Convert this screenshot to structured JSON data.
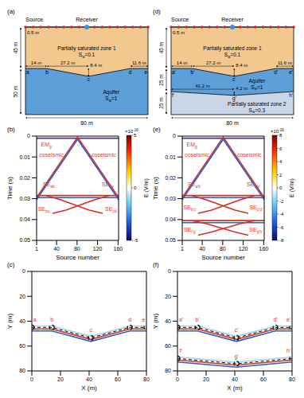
{
  "diagrams": [
    {
      "label": "(a)",
      "source": "Source",
      "receiver": "Receiver",
      "spacing": "0.5 m",
      "width": {
        "value": 80,
        "label": "80 m"
      },
      "layers": [
        {
          "name": "Partially saturated zone 1",
          "saturation": {
            "text": "S",
            "sub": "w",
            "rest": "=0.1"
          },
          "thickness": {
            "value": 45,
            "label": "45 m"
          },
          "color": "#f3c88f"
        },
        {
          "name": "Aquifer",
          "saturation": {
            "text": "S",
            "sub": "w",
            "rest": "=1"
          },
          "thickness": {
            "value": 50,
            "label": "50 m"
          },
          "color": "#5d9fd8"
        }
      ],
      "interfaces": [
        {
          "points": [
            {
              "name": "a",
              "x": 0,
              "depth": 45
            },
            {
              "name": "b",
              "x": 14,
              "depth": 45
            },
            {
              "name": "c",
              "x": 41.2,
              "depth": 53.4
            },
            {
              "name": "d",
              "x": 68.4,
              "depth": 45
            },
            {
              "name": "e",
              "x": 80,
              "depth": 45
            }
          ],
          "dims": [
            {
              "label": "14 m",
              "axis": "x",
              "from": "a",
              "to": "b"
            },
            {
              "label": "27.2 m",
              "axis": "x",
              "from": "b",
              "to": "c"
            },
            {
              "label": "11.6 m",
              "axis": "x",
              "from": "d",
              "to": "e"
            },
            {
              "label": "8.4 m",
              "axis": "y",
              "from": "b",
              "to": "c"
            }
          ]
        }
      ]
    },
    {
      "label": "(d)",
      "source": "Source",
      "receiver": "Receiver",
      "spacing": "0.5 m",
      "width": {
        "value": 80,
        "label": "80 m"
      },
      "layers": [
        {
          "name": "Partially saturated zone 1",
          "saturation": {
            "text": "S",
            "sub": "w",
            "rest": "=0.1"
          },
          "thickness": {
            "value": 45,
            "label": "45 m"
          },
          "color": "#f3c88f"
        },
        {
          "name": "Aquifer",
          "saturation": {
            "text": "S",
            "sub": "w",
            "rest": "=1"
          },
          "thickness": {
            "value": 25,
            "label": "25 m"
          },
          "color": "#5d9fd8"
        },
        {
          "name": "Partially saturated zone 2",
          "saturation": {
            "text": "S",
            "sub": "w",
            "rest": "=0.3"
          },
          "thickness": {
            "value": 25,
            "label": "25 m"
          },
          "color": "#c9d6e8"
        }
      ],
      "interfaces": [
        {
          "points": [
            {
              "name": "a'",
              "x": 0,
              "depth": 45
            },
            {
              "name": "b'",
              "x": 14,
              "depth": 45
            },
            {
              "name": "c'",
              "x": 41.2,
              "depth": 53.4
            },
            {
              "name": "d'",
              "x": 68.4,
              "depth": 45
            },
            {
              "name": "e'",
              "x": 80,
              "depth": 45
            }
          ],
          "dims": [
            {
              "label": "14 m",
              "axis": "x",
              "from": "a'",
              "to": "b'"
            },
            {
              "label": "27.2 m",
              "axis": "x",
              "from": "b'",
              "to": "c'"
            },
            {
              "label": "11.6 m",
              "axis": "x",
              "from": "d'",
              "to": "e'"
            },
            {
              "label": "8.4 m",
              "axis": "y",
              "from": "b'",
              "to": "c'"
            }
          ]
        },
        {
          "points": [
            {
              "name": "f'",
              "x": 0,
              "depth": 70
            },
            {
              "name": "g'",
              "x": 41.2,
              "depth": 74.2
            },
            {
              "name": "h'",
              "x": 80,
              "depth": 70
            }
          ],
          "dims": [
            {
              "label": "41.2 m",
              "axis": "x",
              "from": "f'",
              "to": "g'"
            },
            {
              "label": "4.2 m",
              "axis": "y",
              "from": "f'",
              "to": "g'"
            }
          ]
        }
      ]
    }
  ],
  "chart_data": [
    {
      "label": "(b)",
      "type": "line",
      "xlabel": "Source number",
      "ylabel": "Time (s)",
      "xlim": [
        1,
        161
      ],
      "xticks": [
        1,
        40,
        80,
        120,
        160
      ],
      "ylim": [
        0,
        0.05
      ],
      "yticks": [
        0,
        0.01,
        0.02,
        0.03,
        0.04,
        0.05
      ],
      "grid": false,
      "colorbar": {
        "label": "E (V/m)",
        "multiplier": {
          "text": "×10",
          "sup": "-16"
        },
        "range": [
          -5,
          5
        ],
        "ticks": [
          -5,
          0,
          5
        ]
      },
      "series": [
        {
          "color": "#5b2a86",
          "x": [
            1,
            161
          ],
          "values": [
            0.001,
            0.001
          ]
        },
        {
          "color": "#d7301f",
          "x": [
            1,
            81,
            161
          ],
          "values": [
            0.0295,
            0.0005,
            0.0295
          ]
        },
        {
          "color": "#2c5fc4",
          "x": [
            1,
            81,
            161
          ],
          "values": [
            0.0305,
            0.0015,
            0.0305
          ]
        },
        {
          "color": "#d7301f",
          "x": [
            1,
            161
          ],
          "values": [
            0.0285,
            0.0285
          ]
        },
        {
          "color": "#2c5fc4",
          "x": [
            1,
            161
          ],
          "values": [
            0.0295,
            0.0295
          ]
        },
        {
          "color": "#d7301f",
          "x": [
            20,
            48,
            76,
            104,
            130
          ],
          "values": [
            0.0285,
            0.0305,
            0.033,
            0.0355,
            0.037
          ]
        },
        {
          "color": "#d7301f",
          "x": [
            32,
            58,
            86,
            114,
            142
          ],
          "values": [
            0.037,
            0.0355,
            0.033,
            0.0305,
            0.0285
          ]
        }
      ],
      "annotations": [
        {
          "text": "EM",
          "sub": "g",
          "x": 20,
          "y": 0.005,
          "color": "#e8312a"
        },
        {
          "text": "coseismic",
          "x": 30,
          "y": 0.01,
          "color": "#e8312a"
        },
        {
          "text": "coseismic",
          "x": 132,
          "y": 0.01,
          "color": "#e8312a"
        },
        {
          "text": "SE",
          "sub": "ab",
          "x": 25,
          "y": 0.024,
          "color": "#e8312a"
        },
        {
          "text": "SE",
          "sub": "de",
          "x": 140,
          "y": 0.024,
          "color": "#e8312a"
        },
        {
          "text": "SE",
          "sub": "bc",
          "x": 15,
          "y": 0.036,
          "color": "#e8312a"
        },
        {
          "text": "SE",
          "sub": "cd",
          "x": 146,
          "y": 0.036,
          "color": "#e8312a"
        }
      ]
    },
    {
      "label": "(c)",
      "type": "line",
      "xlabel": "X (m)",
      "ylabel": "Y (m)",
      "xlim": [
        0,
        80
      ],
      "xticks": [
        0,
        20,
        40,
        60,
        80
      ],
      "ylim": [
        0,
        80
      ],
      "yticks": [
        0,
        20,
        40,
        60,
        80
      ],
      "grid": false,
      "series": [
        {
          "color": "#9ad8ea",
          "x": [
            0,
            14,
            41.2,
            68.4,
            80
          ],
          "values": [
            43.8,
            43.8,
            52.2,
            43.8,
            43.8
          ]
        },
        {
          "color": "#d7301f",
          "x": [
            0,
            14,
            41.2,
            68.4,
            80
          ],
          "values": [
            46.2,
            46.2,
            54.6,
            46.2,
            46.2
          ]
        },
        {
          "color": "#2c5fc4",
          "x": [
            0,
            14,
            41.2,
            68.4,
            80
          ],
          "values": [
            47.8,
            47.8,
            56.2,
            47.8,
            47.8
          ]
        },
        {
          "color": "#000000",
          "line_style": "dashed",
          "marker": "circle",
          "x": [
            0,
            14,
            41.2,
            68.4,
            80
          ],
          "values": [
            45,
            45,
            53.4,
            45,
            45
          ]
        }
      ],
      "annotations": [
        {
          "text": "a",
          "x": 2,
          "y": 40,
          "color": "#e8312a"
        },
        {
          "text": "b",
          "x": 14,
          "y": 40,
          "color": "#e8312a"
        },
        {
          "text": "c",
          "x": 41.2,
          "y": 48.5,
          "color": "#e8312a"
        },
        {
          "text": "d",
          "x": 68.4,
          "y": 40,
          "color": "#e8312a"
        },
        {
          "text": "e",
          "x": 78,
          "y": 40,
          "color": "#e8312a"
        }
      ]
    },
    {
      "label": "(e)",
      "type": "line",
      "xlabel": "Source number",
      "ylabel": "Time (s)",
      "xlim": [
        1,
        161
      ],
      "xticks": [
        1,
        40,
        80,
        120,
        160
      ],
      "ylim": [
        0,
        0.05
      ],
      "yticks": [
        0,
        0.01,
        0.02,
        0.03,
        0.04,
        0.05
      ],
      "grid": false,
      "colorbar": {
        "label": "E (V/m)",
        "multiplier": {
          "text": "×10",
          "sup": "-16"
        },
        "range": [
          -8,
          8
        ],
        "ticks": [
          -8,
          -6,
          -4,
          -2,
          0,
          2,
          4,
          6,
          8
        ]
      },
      "series": [
        {
          "color": "#5b2a86",
          "x": [
            1,
            161
          ],
          "values": [
            0.001,
            0.001
          ]
        },
        {
          "color": "#d7301f",
          "x": [
            1,
            81,
            161
          ],
          "values": [
            0.0295,
            0.0005,
            0.0295
          ]
        },
        {
          "color": "#2c5fc4",
          "x": [
            1,
            81,
            161
          ],
          "values": [
            0.0305,
            0.0015,
            0.0305
          ]
        },
        {
          "color": "#d7301f",
          "x": [
            1,
            161
          ],
          "values": [
            0.0285,
            0.0285
          ]
        },
        {
          "color": "#2c5fc4",
          "x": [
            1,
            161
          ],
          "values": [
            0.0295,
            0.0295
          ]
        },
        {
          "color": "#d7301f",
          "x": [
            20,
            48,
            76,
            104,
            130
          ],
          "values": [
            0.0285,
            0.0305,
            0.033,
            0.0355,
            0.037
          ]
        },
        {
          "color": "#d7301f",
          "x": [
            32,
            58,
            86,
            114,
            142
          ],
          "values": [
            0.037,
            0.0355,
            0.033,
            0.0305,
            0.0285
          ]
        },
        {
          "color": "#d7301f",
          "x": [
            1,
            161
          ],
          "values": [
            0.0405,
            0.0405
          ]
        },
        {
          "color": "#2c5fc4",
          "x": [
            1,
            161
          ],
          "values": [
            0.0415,
            0.0415
          ]
        },
        {
          "color": "#d7301f",
          "x": [
            20,
            48,
            76,
            104,
            130
          ],
          "values": [
            0.0405,
            0.042,
            0.044,
            0.046,
            0.0475
          ]
        },
        {
          "color": "#d7301f",
          "x": [
            32,
            58,
            86,
            114,
            142
          ],
          "values": [
            0.0475,
            0.046,
            0.044,
            0.042,
            0.0405
          ]
        }
      ],
      "annotations": [
        {
          "text": "EM",
          "sub": "g",
          "x": 20,
          "y": 0.005,
          "color": "#e8312a"
        },
        {
          "text": "coseismic",
          "x": 30,
          "y": 0.01,
          "color": "#e8312a"
        },
        {
          "text": "coseismic",
          "x": 132,
          "y": 0.01,
          "color": "#e8312a"
        },
        {
          "text": "SE",
          "sub": "a'b'",
          "x": 25,
          "y": 0.024,
          "color": "#e8312a"
        },
        {
          "text": "SE",
          "sub": "d'e'",
          "x": 140,
          "y": 0.024,
          "color": "#e8312a"
        },
        {
          "text": "SE",
          "sub": "b'c'",
          "x": 16,
          "y": 0.035,
          "color": "#e8312a"
        },
        {
          "text": "SE",
          "sub": "c'd'",
          "x": 145,
          "y": 0.035,
          "color": "#e8312a"
        },
        {
          "text": "SE",
          "sub": "f'g'",
          "x": 16,
          "y": 0.0458,
          "color": "#e8312a"
        },
        {
          "text": "SE",
          "sub": "g'h'",
          "x": 145,
          "y": 0.0458,
          "color": "#e8312a"
        }
      ]
    },
    {
      "label": "(f)",
      "type": "line",
      "xlabel": "X (m)",
      "ylabel": "Y (m)",
      "xlim": [
        0,
        80
      ],
      "xticks": [
        0,
        20,
        40,
        60,
        80
      ],
      "ylim": [
        0,
        80
      ],
      "yticks": [
        0,
        20,
        40,
        60,
        80
      ],
      "grid": false,
      "series": [
        {
          "color": "#9ad8ea",
          "x": [
            0,
            14,
            41.2,
            68.4,
            80
          ],
          "values": [
            43.8,
            43.8,
            52.2,
            43.8,
            43.8
          ]
        },
        {
          "color": "#d7301f",
          "x": [
            0,
            14,
            41.2,
            68.4,
            80
          ],
          "values": [
            46.2,
            46.2,
            54.6,
            46.2,
            46.2
          ]
        },
        {
          "color": "#2c5fc4",
          "x": [
            0,
            14,
            41.2,
            68.4,
            80
          ],
          "values": [
            47.8,
            47.8,
            56.2,
            47.8,
            47.8
          ]
        },
        {
          "color": "#000000",
          "line_style": "dashed",
          "marker": "circle",
          "x": [
            0,
            14,
            41.2,
            68.4,
            80
          ],
          "values": [
            45,
            45,
            53.4,
            45,
            45
          ]
        },
        {
          "color": "#9ad8ea",
          "x": [
            0,
            41.2,
            80
          ],
          "values": [
            68.8,
            73,
            68.8
          ]
        },
        {
          "color": "#d7301f",
          "x": [
            0,
            41.2,
            80
          ],
          "values": [
            71.2,
            75.4,
            71.2
          ]
        },
        {
          "color": "#2c5fc4",
          "x": [
            0,
            41.2,
            80
          ],
          "values": [
            72.8,
            77,
            72.8
          ]
        },
        {
          "color": "#000000",
          "line_style": "dashed",
          "marker": "circle",
          "x": [
            0,
            41.2,
            80
          ],
          "values": [
            70,
            74.2,
            70
          ]
        }
      ],
      "annotations": [
        {
          "text": "a'",
          "x": 2.5,
          "y": 40,
          "color": "#e8312a"
        },
        {
          "text": "b'",
          "x": 14,
          "y": 40,
          "color": "#e8312a"
        },
        {
          "text": "c'",
          "x": 41.2,
          "y": 48.5,
          "color": "#e8312a"
        },
        {
          "text": "d'",
          "x": 68.4,
          "y": 40,
          "color": "#e8312a"
        },
        {
          "text": "e'",
          "x": 77.5,
          "y": 40,
          "color": "#e8312a"
        },
        {
          "text": "f'",
          "x": 2.5,
          "y": 65.5,
          "color": "#e8312a"
        },
        {
          "text": "g'",
          "x": 41.2,
          "y": 69.5,
          "color": "#e8312a"
        },
        {
          "text": "h'",
          "x": 77.5,
          "y": 65.5,
          "color": "#e8312a"
        }
      ]
    }
  ]
}
